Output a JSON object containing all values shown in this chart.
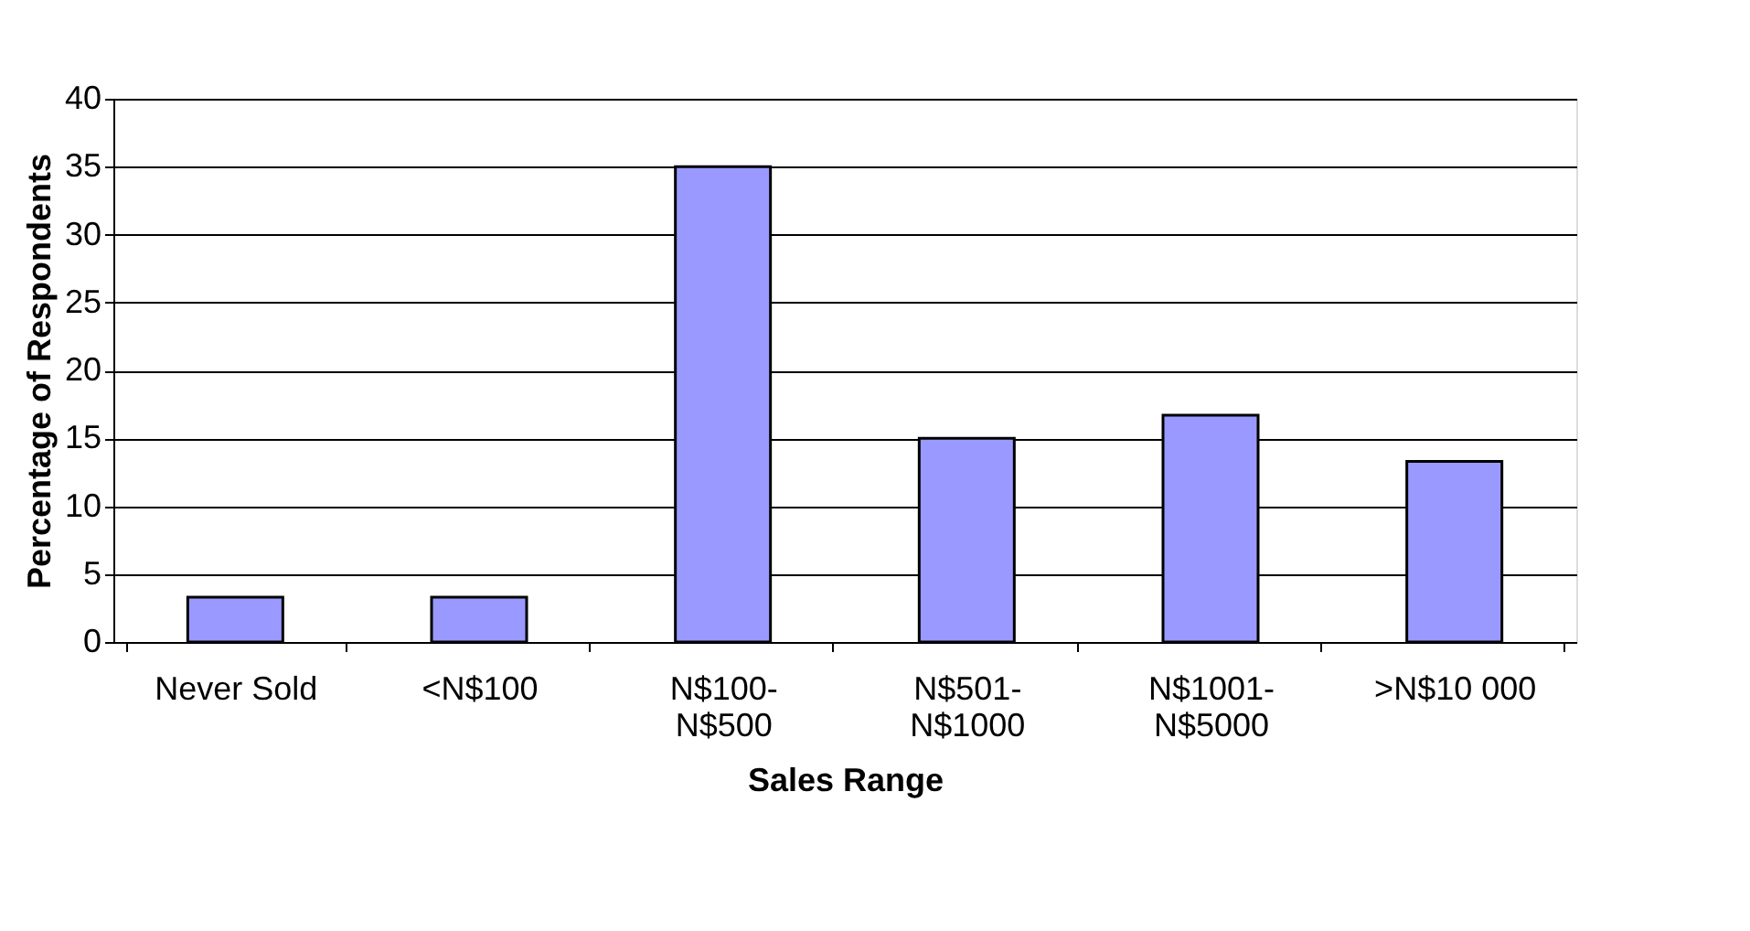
{
  "chart_data": {
    "type": "bar",
    "xlabel": "Sales Range",
    "ylabel": "Percentage of Respondents",
    "categories": [
      "Never Sold",
      "<N$100",
      "N$100-N$500",
      "N$501-N$1000",
      "N$1001-N$5000",
      ">N$10 000"
    ],
    "values": [
      3.3,
      3.3,
      35,
      15,
      16.7,
      13.3
    ],
    "color": "#9999ff",
    "ylim": [
      0,
      40
    ],
    "yticks": [
      0,
      5,
      10,
      15,
      20,
      25,
      30,
      35,
      40
    ],
    "grid": true
  }
}
